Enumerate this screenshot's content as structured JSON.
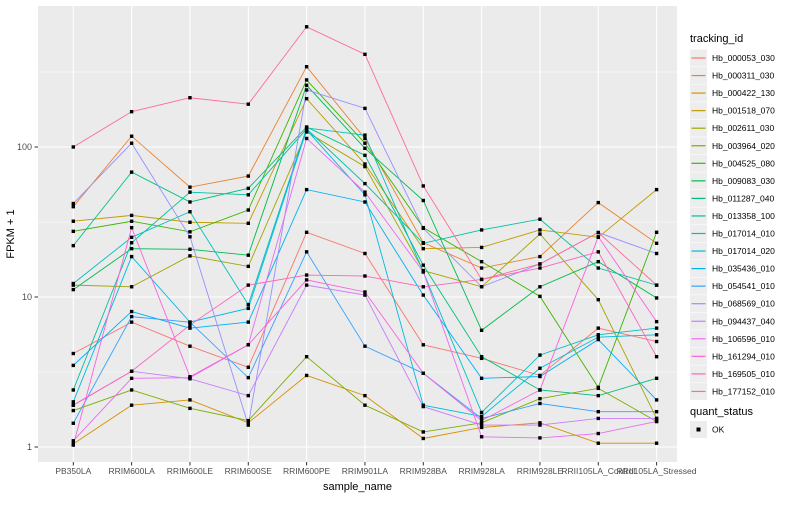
{
  "chart_data": {
    "type": "line",
    "title": "",
    "xlabel": "sample_name",
    "ylabel": "FPKM + 1",
    "y_scale": "log10",
    "ylim": [
      1,
      820
    ],
    "grid": "on",
    "panel_bg": "#EBEBEB",
    "grid_color": "#FFFFFF",
    "tick_label_color": "#4D4D4D",
    "axis_title_color": "#000000",
    "point_color": "#000000",
    "legend_position": "right",
    "legend_title": "tracking_id",
    "quant_legend": {
      "title": "quant_status",
      "items": [
        {
          "label": "OK",
          "marker": "black-square"
        }
      ]
    },
    "y_ticks": [
      {
        "v": 1,
        "label": "1"
      },
      {
        "v": 10,
        "label": "10"
      },
      {
        "v": 100,
        "label": "100"
      }
    ],
    "y_minor": [
      3.1623,
      31.623,
      316.23
    ],
    "categories": [
      "PB350LA",
      "RRIM600LA",
      "RRIM600LE",
      "RRIM600SE",
      "RRIM600PE",
      "RRIM901LA",
      "RRIM928BA",
      "RRIM928LA",
      "RRIM928LE",
      "RRII105LA_Control",
      "RRII105LA_Stressed"
    ],
    "series": [
      {
        "name": "Hb_000053_030",
        "color": "#F8766D",
        "values": [
          4.2,
          6.8,
          4.7,
          3.4,
          27,
          19.5,
          4.8,
          3.9,
          3.0,
          6.2,
          5.05
        ]
      },
      {
        "name": "Hb_000311_030",
        "color": "#EA8331",
        "values": [
          40,
          118,
          54,
          64,
          343,
          114,
          23,
          15.6,
          18.6,
          42.6,
          22.8
        ]
      },
      {
        "name": "Hb_000422_130",
        "color": "#D89000",
        "values": [
          1.05,
          1.9,
          2.06,
          1.45,
          3.0,
          2.2,
          1.14,
          1.35,
          1.45,
          1.06,
          1.06
        ]
      },
      {
        "name": "Hb_001518_070",
        "color": "#C09B00",
        "values": [
          32,
          35,
          31.5,
          31,
          210,
          77,
          21,
          21.4,
          28,
          25,
          52
        ]
      },
      {
        "name": "Hb_002611_030",
        "color": "#A3A500",
        "values": [
          12,
          11.7,
          18.8,
          16,
          126,
          74,
          15,
          11.7,
          26.3,
          9.6,
          1.55
        ]
      },
      {
        "name": "Hb_003964_020",
        "color": "#7CAE00",
        "values": [
          1.75,
          2.4,
          1.81,
          1.5,
          4.0,
          1.9,
          1.26,
          1.45,
          2.1,
          2.46,
          1.48
        ]
      },
      {
        "name": "Hb_004525_080",
        "color": "#39B600",
        "values": [
          27.4,
          32,
          27.2,
          38,
          280,
          106,
          29,
          17.2,
          10.1,
          2.5,
          27
        ]
      },
      {
        "name": "Hb_009083_030",
        "color": "#00BB4E",
        "values": [
          11.2,
          21,
          20.8,
          19,
          258,
          98,
          44,
          6.0,
          11.7,
          17.2,
          9.85
        ]
      },
      {
        "name": "Hb_011287_040",
        "color": "#00BF7D",
        "values": [
          22,
          68,
          43,
          53,
          136,
          88,
          16.3,
          4.0,
          2.4,
          2.2,
          2.87
        ]
      },
      {
        "name": "Hb_013358_100",
        "color": "#00C1A3",
        "values": [
          2.4,
          23,
          50,
          48,
          132,
          57,
          22.8,
          28,
          33,
          15.6,
          12
        ]
      },
      {
        "name": "Hb_017014_010",
        "color": "#00BFC4",
        "values": [
          12.3,
          25,
          37,
          8.9,
          134,
          120,
          14.7,
          1.7,
          4.1,
          5.6,
          6.2
        ]
      },
      {
        "name": "Hb_017014_020",
        "color": "#00BAE0",
        "values": [
          2.0,
          18.6,
          6.8,
          8.4,
          130,
          48,
          1.9,
          1.6,
          3.35,
          5.4,
          5.6
        ]
      },
      {
        "name": "Hb_035436_010",
        "color": "#00B0F6",
        "values": [
          3.5,
          8.0,
          6.2,
          6.8,
          52,
          43,
          10.3,
          2.87,
          2.95,
          5.2,
          2.06
        ]
      },
      {
        "name": "Hb_054541_010",
        "color": "#35A2FF",
        "values": [
          1.44,
          7.4,
          6.8,
          2.9,
          20,
          4.7,
          3.1,
          1.55,
          1.95,
          1.72,
          1.72
        ]
      },
      {
        "name": "Hb_068569_010",
        "color": "#9590FF",
        "values": [
          42,
          106,
          25.2,
          1.4,
          240,
          181,
          28.7,
          11.7,
          16.6,
          26.9,
          19.5
        ]
      },
      {
        "name": "Hb_094437_040",
        "color": "#C77CFF",
        "values": [
          1.9,
          3.2,
          2.85,
          2.2,
          12,
          10.3,
          1.86,
          1.4,
          1.4,
          1.55,
          1.55
        ]
      },
      {
        "name": "Hb_106596_010",
        "color": "#E76BF3",
        "values": [
          1.1,
          2.87,
          2.9,
          4.8,
          114,
          50,
          14.7,
          1.17,
          1.15,
          1.23,
          1.48
        ]
      },
      {
        "name": "Hb_161294_010",
        "color": "#FA62DB",
        "values": [
          1.03,
          29,
          2.94,
          4.8,
          13,
          10.8,
          3.1,
          1.5,
          2.4,
          25.2,
          6.85
        ]
      },
      {
        "name": "Hb_169505_010",
        "color": "#FF62BC",
        "values": [
          1.9,
          3.2,
          6.5,
          12,
          14,
          13.8,
          11.7,
          13.1,
          15.6,
          20,
          4.0
        ]
      },
      {
        "name": "Hb_177152_010",
        "color": "#FF6A98",
        "values": [
          100,
          172,
          213,
          193,
          633,
          415,
          55,
          13.1,
          16.6,
          26.9,
          12
        ]
      }
    ]
  }
}
